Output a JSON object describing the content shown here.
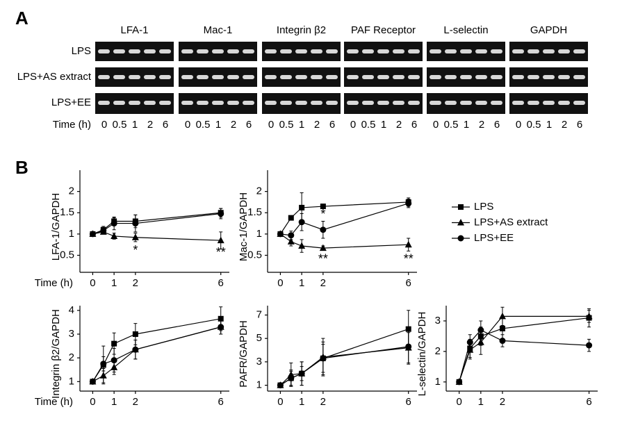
{
  "panel_a": {
    "label": "A",
    "genes": [
      "LFA-1",
      "Mac-1",
      "Integrin β2",
      "PAF Receptor",
      "L-selectin",
      "GAPDH"
    ],
    "rows": [
      "LPS",
      "LPS+AS extract",
      "LPS+EE"
    ],
    "time_label": "Time (h)",
    "times": [
      "0",
      "0.5",
      "1",
      "2",
      "6"
    ]
  },
  "panel_b": {
    "label": "B"
  },
  "chart_data": [
    {
      "type": "line",
      "ylabel": "LFA-1/GAPDH",
      "xlabel": "Time (h)",
      "x": [
        0,
        0.5,
        1,
        2,
        6
      ],
      "xlim": [
        -0.6,
        6.4
      ],
      "xticks": [
        0,
        1,
        2,
        6
      ],
      "ylim": [
        0.1,
        2.5
      ],
      "yticks": [
        0.5,
        1,
        1.5,
        2
      ],
      "series": [
        {
          "marker": "square",
          "color": "#000",
          "values": [
            1,
            1.1,
            1.3,
            1.3,
            1.5
          ],
          "errors": [
            0.02,
            0.08,
            0.08,
            0.15,
            0.1
          ]
        },
        {
          "marker": "triangle",
          "color": "#000",
          "values": [
            1,
            1.05,
            0.95,
            0.92,
            0.85
          ],
          "errors": [
            0.02,
            0.05,
            0.07,
            0.1,
            0.2
          ]
        },
        {
          "marker": "circle",
          "color": "#000",
          "values": [
            1,
            1.08,
            1.25,
            1.25,
            1.48
          ],
          "errors": [
            0.02,
            0.06,
            0.15,
            0.2,
            0.12
          ]
        }
      ],
      "annotations": [
        {
          "text": "*",
          "x": 2,
          "y": 0.6
        },
        {
          "text": "**",
          "x": 6,
          "y": 0.55
        }
      ]
    },
    {
      "type": "line",
      "ylabel": "Mac-1/GAPDH",
      "x": [
        0,
        0.5,
        1,
        2,
        6
      ],
      "xlim": [
        -0.6,
        6.4
      ],
      "xticks": [
        0,
        1,
        2,
        6
      ],
      "ylim": [
        0.1,
        2.5
      ],
      "yticks": [
        0.5,
        1,
        1.5,
        2
      ],
      "legend": "right",
      "series": [
        {
          "name": "LPS",
          "marker": "square",
          "color": "#000",
          "values": [
            1,
            1.38,
            1.62,
            1.65,
            1.75
          ],
          "errors": [
            0.03,
            0.05,
            0.35,
            0.05,
            0.1
          ]
        },
        {
          "name": "LPS+AS extract",
          "marker": "triangle",
          "color": "#000",
          "values": [
            1,
            0.82,
            0.72,
            0.67,
            0.75
          ],
          "errors": [
            0.03,
            0.1,
            0.15,
            0.05,
            0.15
          ]
        },
        {
          "name": "LPS+EE",
          "marker": "circle",
          "color": "#000",
          "values": [
            1,
            0.97,
            1.28,
            1.1,
            1.72
          ],
          "errors": [
            0.03,
            0.1,
            0.2,
            0.2,
            0.1
          ]
        }
      ],
      "annotations": [
        {
          "text": "*",
          "x": 2,
          "y": 1.45
        },
        {
          "text": "**",
          "x": 2,
          "y": 0.4
        },
        {
          "text": "**",
          "x": 6,
          "y": 0.4
        }
      ]
    },
    {
      "type": "line",
      "ylabel": "Integrin β2/GAPDH",
      "xlabel": "Time (h)",
      "x": [
        0,
        0.5,
        1,
        2,
        6
      ],
      "xlim": [
        -0.6,
        6.4
      ],
      "xticks": [
        0,
        1,
        2,
        6
      ],
      "ylim": [
        0.6,
        4.2
      ],
      "yticks": [
        1,
        2,
        3,
        4
      ],
      "series": [
        {
          "marker": "square",
          "color": "#000",
          "values": [
            1,
            1.7,
            2.6,
            3,
            3.65
          ],
          "errors": [
            0.02,
            0.8,
            0.45,
            0.45,
            0.5
          ]
        },
        {
          "marker": "triangle",
          "color": "#000",
          "values": [
            1,
            1.25,
            1.6,
            2.35,
            3.3
          ],
          "errors": [
            0.02,
            0.3,
            0.3,
            0.4,
            0.3
          ]
        },
        {
          "marker": "circle",
          "color": "#000",
          "values": [
            1,
            1.75,
            1.9,
            2.35,
            3.3
          ],
          "errors": [
            0.02,
            0.3,
            0.5,
            0.4,
            0.3
          ]
        }
      ]
    },
    {
      "type": "line",
      "ylabel": "PAFR/GAPDH",
      "x": [
        0,
        0.5,
        1,
        2,
        6
      ],
      "xlim": [
        -0.6,
        6.4
      ],
      "xticks": [
        0,
        1,
        2,
        6
      ],
      "ylim": [
        0.5,
        7.8
      ],
      "yticks": [
        1,
        3,
        5,
        7
      ],
      "series": [
        {
          "marker": "square",
          "color": "#000",
          "values": [
            1,
            1.6,
            2,
            3.3,
            5.8
          ],
          "errors": [
            0.05,
            0.6,
            0.6,
            1.2,
            1.6
          ]
        },
        {
          "marker": "triangle",
          "color": "#000",
          "values": [
            1,
            1.9,
            2,
            3.4,
            4.2
          ],
          "errors": [
            0.05,
            1,
            1,
            1.6,
            1.3
          ]
        },
        {
          "marker": "circle",
          "color": "#000",
          "values": [
            1,
            1.6,
            2,
            3.3,
            4.3
          ],
          "errors": [
            0.05,
            0.7,
            1,
            1.4,
            1.5
          ]
        }
      ]
    },
    {
      "type": "line",
      "ylabel": "L-selectin/GAPDH",
      "x": [
        0,
        0.5,
        1,
        2,
        6
      ],
      "xlim": [
        -0.6,
        6.4
      ],
      "xticks": [
        0,
        1,
        2,
        6
      ],
      "ylim": [
        0.7,
        3.5
      ],
      "yticks": [
        1,
        2,
        3
      ],
      "series": [
        {
          "marker": "square",
          "color": "#000",
          "values": [
            1,
            2.1,
            2.5,
            2.75,
            3.1
          ],
          "errors": [
            0.05,
            0.3,
            0.3,
            0.4,
            0.3
          ]
        },
        {
          "marker": "triangle",
          "color": "#000",
          "values": [
            1,
            2.05,
            2.3,
            3.15,
            3.15
          ],
          "errors": [
            0.05,
            0.3,
            0.4,
            0.3,
            0.2
          ]
        },
        {
          "marker": "circle",
          "color": "#000",
          "values": [
            1,
            2.3,
            2.7,
            2.35,
            2.2
          ],
          "errors": [
            0.05,
            0.25,
            0.3,
            0.2,
            0.2
          ]
        }
      ]
    }
  ]
}
